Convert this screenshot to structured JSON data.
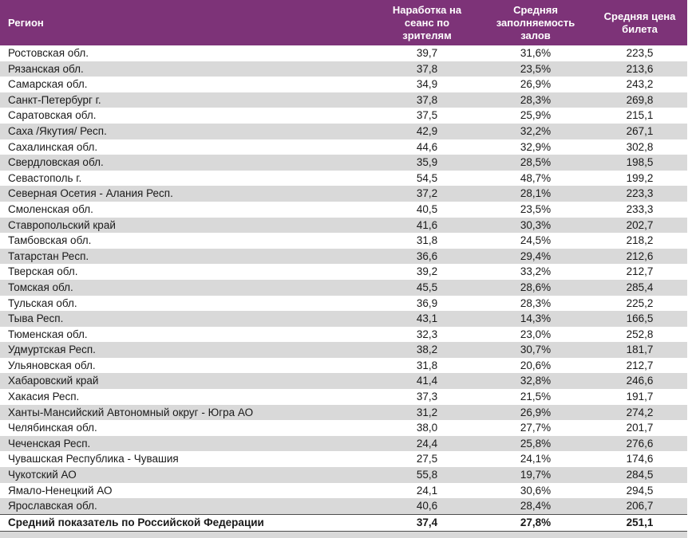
{
  "colors": {
    "header_bg": "#7D3378",
    "header_text": "#FFFFFF",
    "row_alt_bg": "#D9D9D9",
    "text_color": "#1A1A1A",
    "summary_border": "#4D4D4D"
  },
  "table": {
    "columns": [
      "Регион",
      "Наработка на сеанс по зрителям",
      "Средняя заполняемость залов",
      "Средняя цена билета"
    ],
    "rows": [
      {
        "region": "Ростовская обл.",
        "per_session": "39,7",
        "occupancy": "31,6%",
        "ticket_price": "223,5"
      },
      {
        "region": "Рязанская обл.",
        "per_session": "37,8",
        "occupancy": "23,5%",
        "ticket_price": "213,6"
      },
      {
        "region": "Самарская обл.",
        "per_session": "34,9",
        "occupancy": "26,9%",
        "ticket_price": "243,2"
      },
      {
        "region": "Санкт-Петербург г.",
        "per_session": "37,8",
        "occupancy": "28,3%",
        "ticket_price": "269,8"
      },
      {
        "region": "Саратовская обл.",
        "per_session": "37,5",
        "occupancy": "25,9%",
        "ticket_price": "215,1"
      },
      {
        "region": "Саха /Якутия/ Респ.",
        "per_session": "42,9",
        "occupancy": "32,2%",
        "ticket_price": "267,1"
      },
      {
        "region": "Сахалинская обл.",
        "per_session": "44,6",
        "occupancy": "32,9%",
        "ticket_price": "302,8"
      },
      {
        "region": "Свердловская обл.",
        "per_session": "35,9",
        "occupancy": "28,5%",
        "ticket_price": "198,5"
      },
      {
        "region": "Севастополь г.",
        "per_session": "54,5",
        "occupancy": "48,7%",
        "ticket_price": "199,2"
      },
      {
        "region": "Северная Осетия - Алания Респ.",
        "per_session": "37,2",
        "occupancy": "28,1%",
        "ticket_price": "223,3"
      },
      {
        "region": "Смоленская обл.",
        "per_session": "40,5",
        "occupancy": "23,5%",
        "ticket_price": "233,3"
      },
      {
        "region": "Ставропольский край",
        "per_session": "41,6",
        "occupancy": "30,3%",
        "ticket_price": "202,7"
      },
      {
        "region": "Тамбовская обл.",
        "per_session": "31,8",
        "occupancy": "24,5%",
        "ticket_price": "218,2"
      },
      {
        "region": "Татарстан Респ.",
        "per_session": "36,6",
        "occupancy": "29,4%",
        "ticket_price": "212,6"
      },
      {
        "region": "Тверская обл.",
        "per_session": "39,2",
        "occupancy": "33,2%",
        "ticket_price": "212,7"
      },
      {
        "region": "Томская обл.",
        "per_session": "45,5",
        "occupancy": "28,6%",
        "ticket_price": "285,4"
      },
      {
        "region": "Тульская обл.",
        "per_session": "36,9",
        "occupancy": "28,3%",
        "ticket_price": "225,2"
      },
      {
        "region": "Тыва Респ.",
        "per_session": "43,1",
        "occupancy": "14,3%",
        "ticket_price": "166,5"
      },
      {
        "region": "Тюменская обл.",
        "per_session": "32,3",
        "occupancy": "23,0%",
        "ticket_price": "252,8"
      },
      {
        "region": "Удмуртская Респ.",
        "per_session": "38,2",
        "occupancy": "30,7%",
        "ticket_price": "181,7"
      },
      {
        "region": "Ульяновская обл.",
        "per_session": "31,8",
        "occupancy": "20,6%",
        "ticket_price": "212,7"
      },
      {
        "region": "Хабаровский край",
        "per_session": "41,4",
        "occupancy": "32,8%",
        "ticket_price": "246,6"
      },
      {
        "region": "Хакасия Респ.",
        "per_session": "37,3",
        "occupancy": "21,5%",
        "ticket_price": "191,7"
      },
      {
        "region": "Ханты-Мансийский Автономный округ - Югра АО",
        "per_session": "31,2",
        "occupancy": "26,9%",
        "ticket_price": "274,2"
      },
      {
        "region": "Челябинская обл.",
        "per_session": "38,0",
        "occupancy": "27,7%",
        "ticket_price": "201,7"
      },
      {
        "region": "Чеченская Респ.",
        "per_session": "24,4",
        "occupancy": "25,8%",
        "ticket_price": "276,6"
      },
      {
        "region": "Чувашская Республика - Чувашия",
        "per_session": "27,5",
        "occupancy": "24,1%",
        "ticket_price": "174,6"
      },
      {
        "region": "Чукотский АО",
        "per_session": "55,8",
        "occupancy": "19,7%",
        "ticket_price": "284,5"
      },
      {
        "region": "Ямало-Ненецкий АО",
        "per_session": "24,1",
        "occupancy": "30,6%",
        "ticket_price": "294,5"
      },
      {
        "region": "Ярославская обл.",
        "per_session": "40,6",
        "occupancy": "28,4%",
        "ticket_price": "206,7"
      }
    ],
    "summary": {
      "label": "Средний показатель по Российской Федерации",
      "per_session": "37,4",
      "occupancy": "27,8%",
      "ticket_price": "251,1"
    }
  }
}
